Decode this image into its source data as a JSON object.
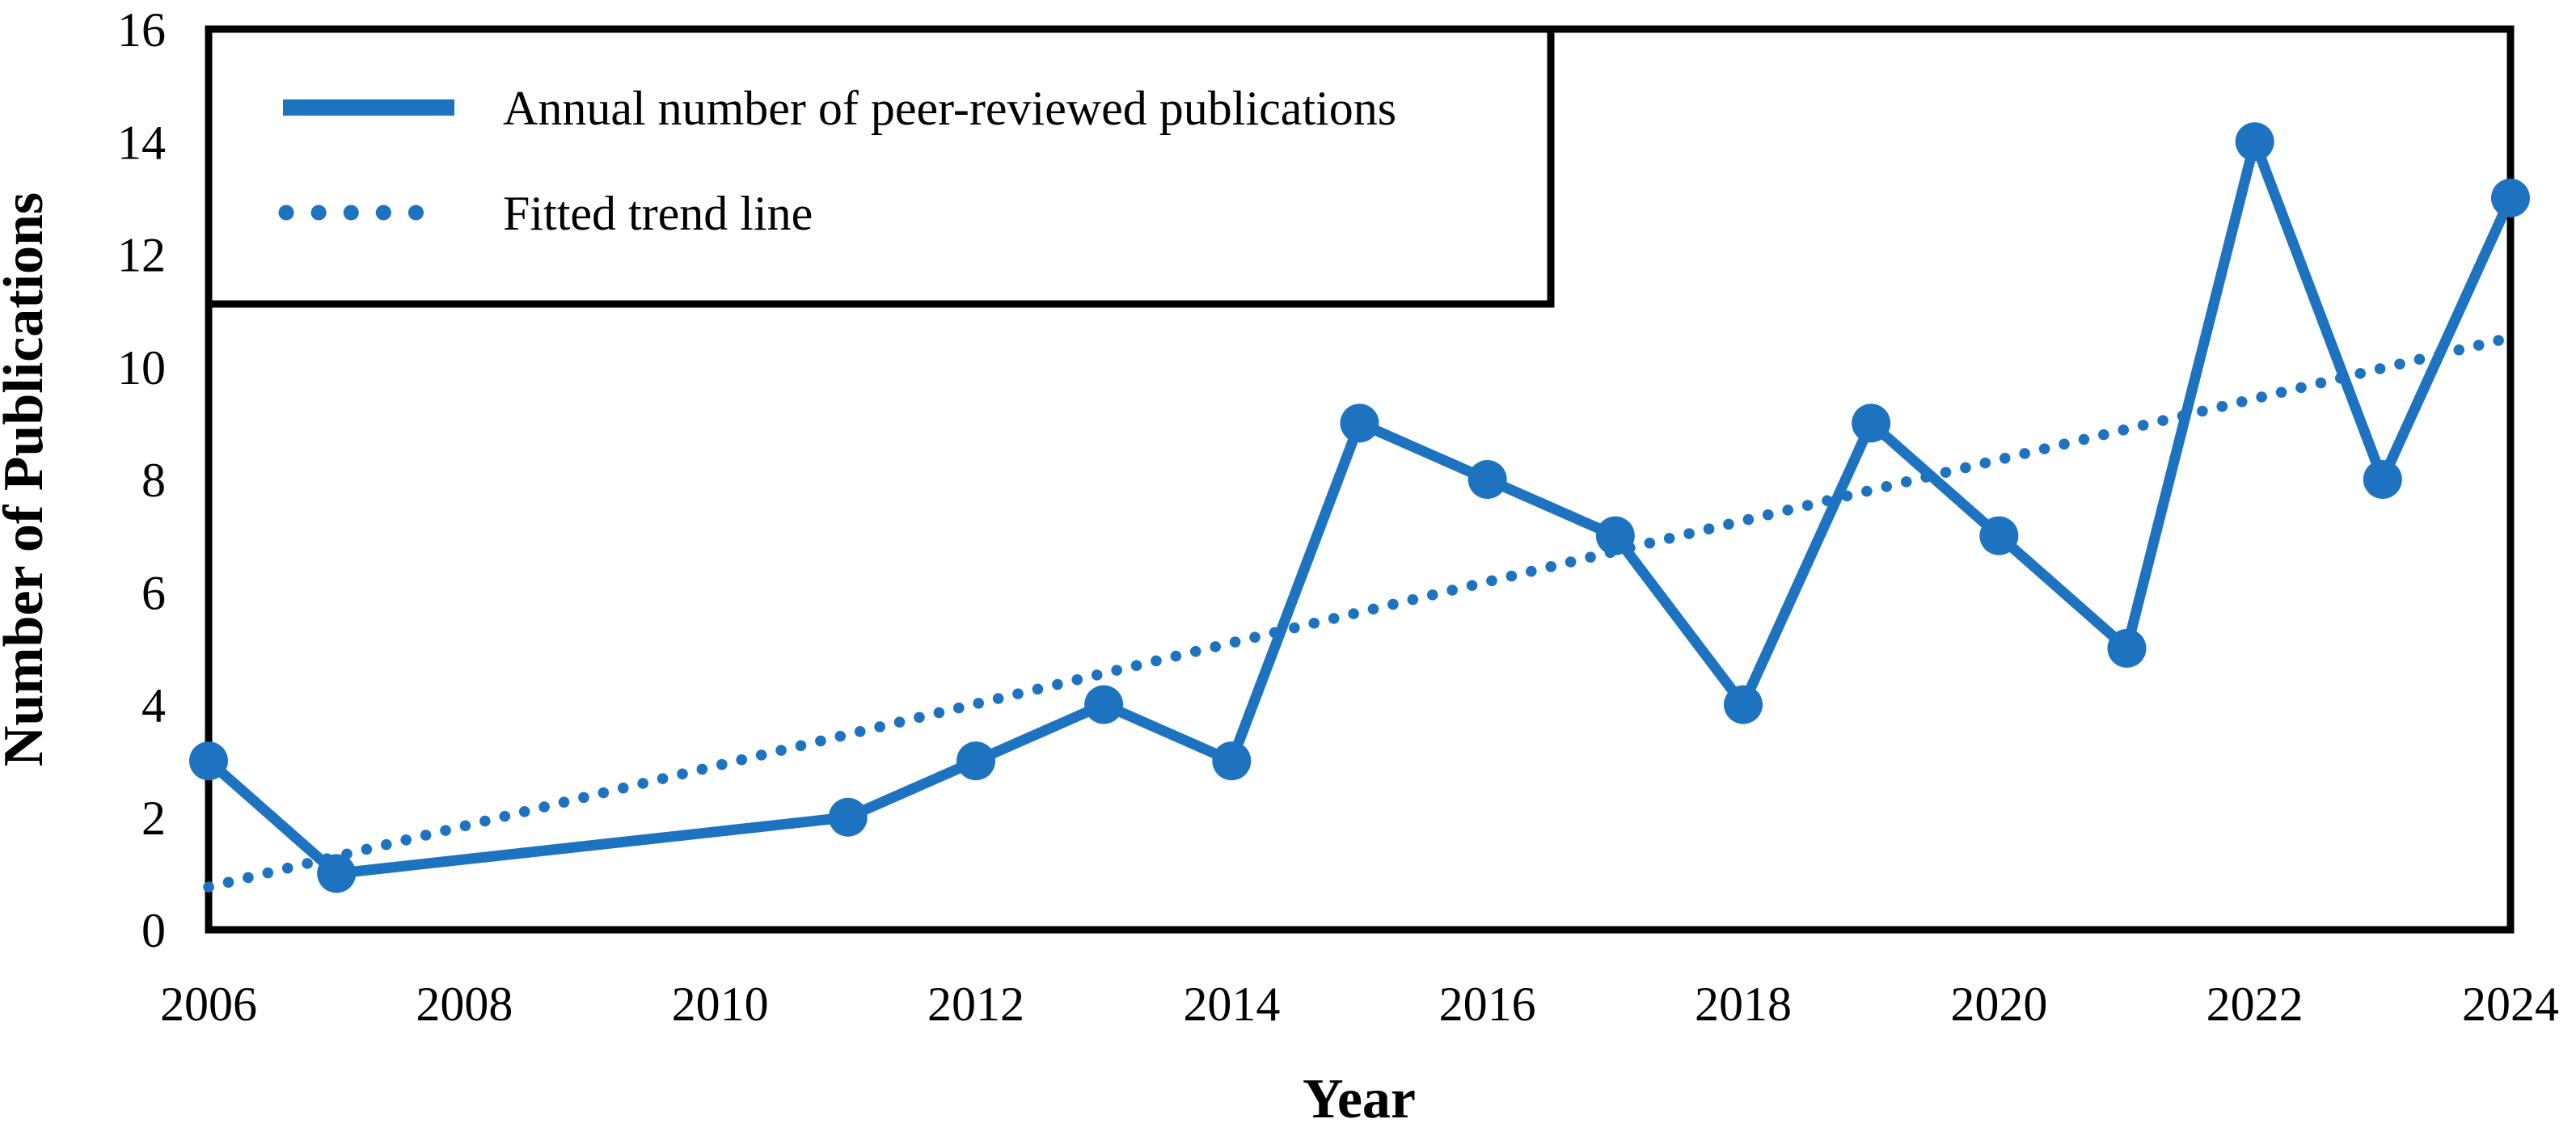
{
  "figure": {
    "background": "#ffffff",
    "series_color": "#1d73c0",
    "axis_color": "#000000",
    "text_color": "#000000"
  },
  "chart_data": {
    "type": "line",
    "title": "",
    "xlabel": "Year",
    "ylabel": "Number of Publications",
    "xlim": [
      2006,
      2024
    ],
    "ylim": [
      0,
      16
    ],
    "xticks": [
      2006,
      2008,
      2010,
      2012,
      2014,
      2016,
      2018,
      2020,
      2022,
      2024
    ],
    "yticks": [
      0,
      2,
      4,
      6,
      8,
      10,
      12,
      14,
      16
    ],
    "grid": false,
    "legend_position": "top-left",
    "series": [
      {
        "name": "Annual number of peer-reviewed publications",
        "style": "solid",
        "markers": true,
        "points": [
          {
            "x": 2006,
            "y": 3
          },
          {
            "x": 2007,
            "y": 1
          },
          {
            "x": 2011,
            "y": 2
          },
          {
            "x": 2012,
            "y": 3
          },
          {
            "x": 2013,
            "y": 4
          },
          {
            "x": 2014,
            "y": 3
          },
          {
            "x": 2015,
            "y": 9
          },
          {
            "x": 2016,
            "y": 8
          },
          {
            "x": 2017,
            "y": 7
          },
          {
            "x": 2018,
            "y": 4
          },
          {
            "x": 2019,
            "y": 9
          },
          {
            "x": 2020,
            "y": 7
          },
          {
            "x": 2021,
            "y": 5
          },
          {
            "x": 2022,
            "y": 14
          },
          {
            "x": 2023,
            "y": 8
          },
          {
            "x": 2024,
            "y": 13
          }
        ]
      },
      {
        "name": "Fitted trend line",
        "style": "dotted",
        "markers": false,
        "points": [
          {
            "x": 2006,
            "y": 0.76
          },
          {
            "x": 2024,
            "y": 10.52
          }
        ]
      }
    ],
    "legend": [
      {
        "label": "Annual number of peer-reviewed publications",
        "swatch": "solid-line"
      },
      {
        "label": "Fitted trend line",
        "swatch": "dotted-line"
      }
    ]
  }
}
